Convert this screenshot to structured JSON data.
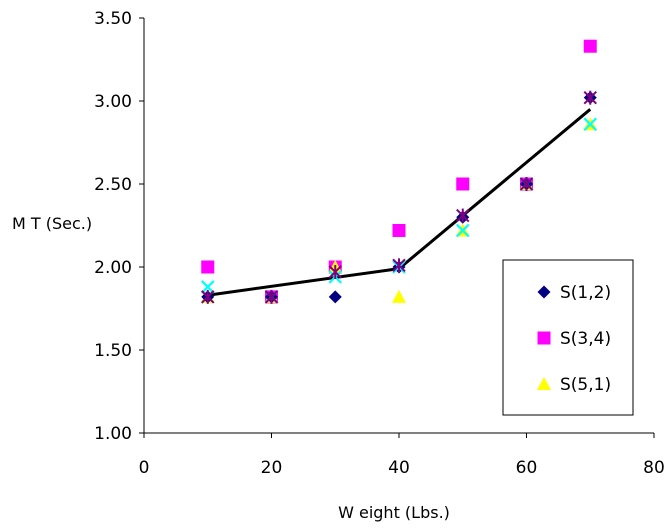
{
  "chart_data": {
    "type": "scatter",
    "title": "",
    "xlabel": "W eight (Lbs.)",
    "ylabel": "M T (Sec.)",
    "xlim": [
      0,
      80
    ],
    "ylim": [
      1.0,
      3.5
    ],
    "x_ticks": [
      "0",
      "20",
      "40",
      "60",
      "80"
    ],
    "y_ticks": [
      "1.00",
      "1.50",
      "2.00",
      "2.50",
      "3.00",
      "3.50"
    ],
    "grid": false,
    "legend_position": "right",
    "series": [
      {
        "name": "S(1,2)",
        "marker": "diamond",
        "color": "#000080",
        "points": [
          [
            10,
            1.82
          ],
          [
            20,
            1.82
          ],
          [
            30,
            1.82
          ],
          [
            40,
            2.0
          ],
          [
            50,
            2.3
          ],
          [
            60,
            2.5
          ],
          [
            70,
            3.02
          ]
        ]
      },
      {
        "name": "S(3,4)",
        "marker": "square",
        "color": "#ff00ff",
        "points": [
          [
            10,
            2.0
          ],
          [
            20,
            1.82
          ],
          [
            30,
            2.0
          ],
          [
            40,
            2.22
          ],
          [
            50,
            2.5
          ],
          [
            60,
            2.5
          ],
          [
            70,
            3.33
          ]
        ]
      },
      {
        "name": "S(5,1)",
        "marker": "triangle",
        "color": "#ffff00",
        "points": [
          [
            10,
            1.82
          ],
          [
            20,
            1.82
          ],
          [
            30,
            2.0
          ],
          [
            40,
            1.82
          ],
          [
            50,
            2.22
          ],
          [
            60,
            2.5
          ],
          [
            70,
            2.86
          ]
        ]
      },
      {
        "name": "",
        "marker": "x",
        "color": "#00ffff",
        "points": [
          [
            10,
            1.88
          ],
          [
            20,
            1.82
          ],
          [
            30,
            1.94
          ],
          [
            40,
            2.0
          ],
          [
            50,
            2.22
          ],
          [
            60,
            2.5
          ],
          [
            70,
            2.86
          ]
        ]
      },
      {
        "name": "",
        "marker": "star",
        "color": "#800080",
        "points": [
          [
            10,
            1.82
          ],
          [
            20,
            1.82
          ],
          [
            30,
            1.97
          ],
          [
            40,
            2.01
          ],
          [
            50,
            2.31
          ],
          [
            60,
            2.5
          ],
          [
            70,
            3.02
          ]
        ]
      }
    ],
    "fit_line": {
      "color": "#000000",
      "points": [
        [
          10,
          1.83
        ],
        [
          40,
          1.99
        ],
        [
          70,
          2.95
        ]
      ]
    }
  }
}
